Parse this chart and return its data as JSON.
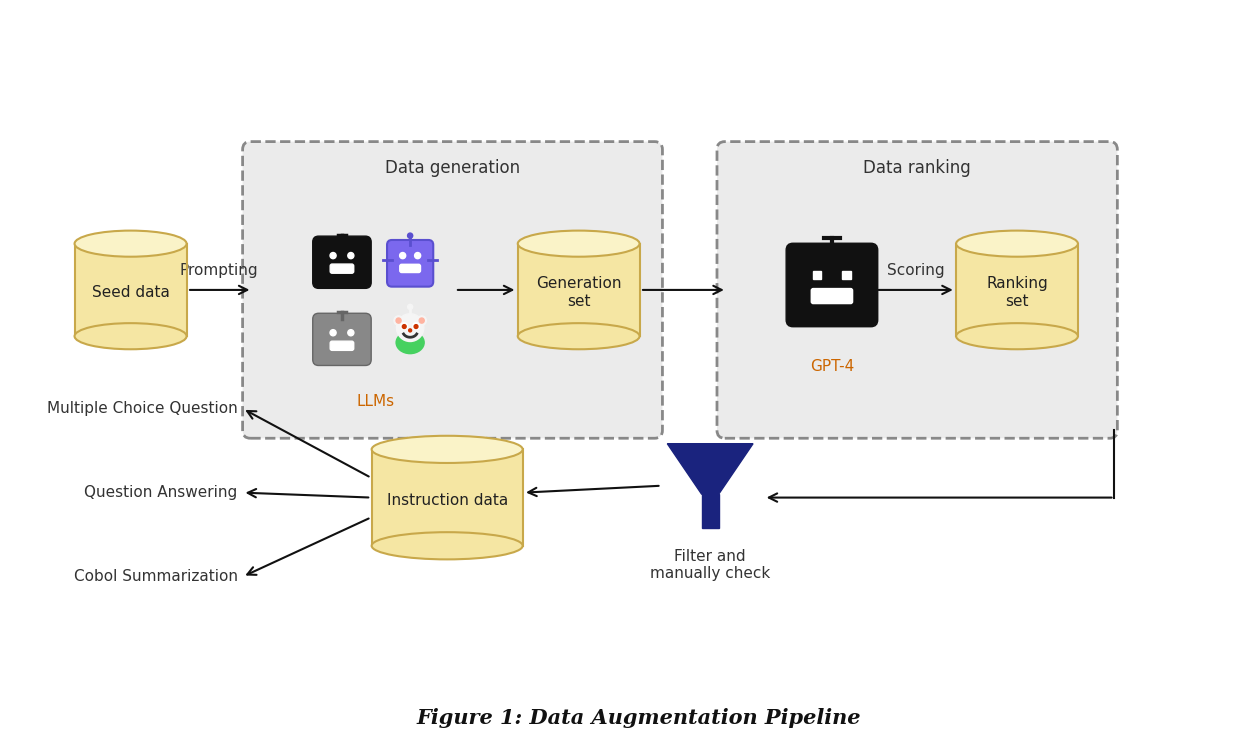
{
  "background_color": "#ffffff",
  "title": "Figure 1: Data Augmentation Pipeline",
  "title_fontsize": 15,
  "cylinder_color": "#f5e6a3",
  "cylinder_edge_color": "#c8a84a",
  "arrow_color": "#111111",
  "funnel_color": "#1a237e",
  "dashed_box_bg": "#ebebeb",
  "dashed_box_edge": "#888888",
  "labels": {
    "seed_data": "Seed data",
    "generation_set": "Generation\nset",
    "ranking_set": "Ranking\nset",
    "instruction_data": "Instruction data",
    "data_generation": "Data generation",
    "data_ranking": "Data ranking",
    "llms": "LLMs",
    "gpt4": "GPT-4",
    "prompting": "Prompting",
    "scoring": "Scoring",
    "filter": "Filter and\nmanually check",
    "mcq": "Multiple Choice Question",
    "qa": "Question Answering",
    "cobol": "Cobol Summarization"
  },
  "robot_black": "#111111",
  "robot_gray": "#888888",
  "robot_purple": "#7b68ee",
  "robot_purple_dark": "#5a4fcf",
  "reddit_orange": "#ff4500",
  "reddit_teal": "#46d160"
}
